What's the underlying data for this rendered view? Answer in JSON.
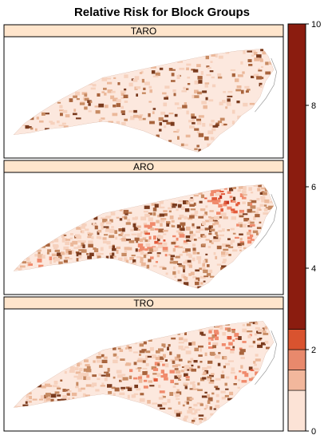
{
  "figure": {
    "title": "Relative Risk for Block Groups"
  },
  "panels": [
    {
      "label": "TARO",
      "intensity": 0.25,
      "hotspots": []
    },
    {
      "label": "ARO",
      "intensity": 0.55,
      "hotspots": [
        {
          "region": "northeast",
          "strength": 0.9
        },
        {
          "region": "east-coast",
          "strength": 0.7
        },
        {
          "region": "central",
          "strength": 0.5
        },
        {
          "region": "southwest",
          "strength": 0.5
        }
      ]
    },
    {
      "label": "TRO",
      "intensity": 0.45,
      "hotspots": [
        {
          "region": "northeast",
          "strength": 0.6
        },
        {
          "region": "east-coast",
          "strength": 0.6
        },
        {
          "region": "central",
          "strength": 0.35
        }
      ]
    }
  ],
  "colorbar": {
    "min": 0,
    "max": 10,
    "ticks": [
      "0",
      "2",
      "4",
      "6",
      "8",
      "10"
    ],
    "bins": [
      {
        "from": 0.0,
        "to": 1.0,
        "color": "#fce3d6"
      },
      {
        "from": 1.0,
        "to": 1.5,
        "color": "#f2b79c"
      },
      {
        "from": 1.5,
        "to": 2.0,
        "color": "#e8896c"
      },
      {
        "from": 2.0,
        "to": 2.5,
        "color": "#d9532f"
      },
      {
        "from": 2.5,
        "to": 10.0,
        "color": "#8b1c0f"
      }
    ]
  },
  "colors": {
    "strip_bg": "#ffe5cc",
    "map_base": "#fce8de",
    "map_texture": [
      "#f6d1bd",
      "#ebb89a",
      "#c78a62",
      "#a8643d",
      "#7a3b1e"
    ],
    "hot": [
      "#f08a6c",
      "#e25a3a",
      "#c43420",
      "#a61f12"
    ]
  }
}
